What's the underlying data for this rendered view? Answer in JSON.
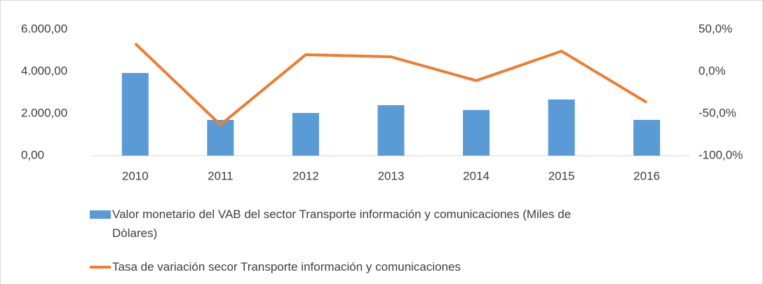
{
  "chart_data": {
    "type": "combo",
    "categories": [
      "2010",
      "2011",
      "2012",
      "2013",
      "2014",
      "2015",
      "2016"
    ],
    "series": [
      {
        "name": "Valor monetario del VAB del sector Transporte información y comunicaciones  (Miles de Dòlares)",
        "type": "bar",
        "color": "#5b9bd5",
        "values": [
          3930,
          1700,
          2030,
          2400,
          2170,
          2670,
          1700
        ]
      },
      {
        "name": "Tasa de variación secor Transporte información y comunicaciones",
        "type": "line",
        "axis": "y2",
        "color": "#ed7d31",
        "values": [
          33.3,
          -63.3,
          20,
          17.5,
          -10.8,
          24.2,
          -36.7
        ]
      }
    ],
    "ylim": [
      0,
      6000
    ],
    "yticks": [
      {
        "value": 0,
        "label": "0,00"
      },
      {
        "value": 2000,
        "label": "2.000,00"
      },
      {
        "value": 4000,
        "label": "4.000,00"
      },
      {
        "value": 6000,
        "label": "6.000,00"
      }
    ],
    "y2lim": [
      -100,
      50
    ],
    "y2ticks": [
      {
        "value": -100,
        "label": "-100,0%"
      },
      {
        "value": -50,
        "label": "-50,0%"
      },
      {
        "value": 0,
        "label": "0,0%"
      },
      {
        "value": 50,
        "label": "50,0%"
      }
    ],
    "grid": false
  }
}
